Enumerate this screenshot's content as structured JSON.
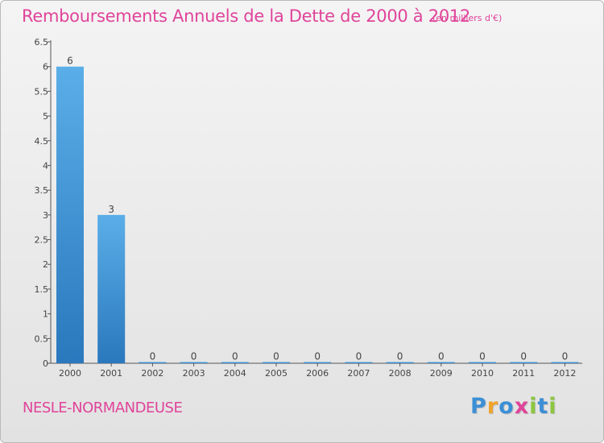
{
  "title": "Remboursements Annuels de la Dette de 2000 à 2012",
  "subtitle": "(en milliers d'€)",
  "commune": "NESLE-NORMANDEUSE",
  "logo": {
    "letters": [
      "P",
      "r",
      "o",
      "x",
      "i",
      "t",
      "i"
    ],
    "colors": [
      "#3b8fd6",
      "#f0a32b",
      "#3b8fd6",
      "#e0449a",
      "#8cc63f",
      "#3b8fd6",
      "#8cc63f"
    ]
  },
  "colors": {
    "accent": "#e0449a",
    "bar_top": "#5aaee8",
    "bar_bottom": "#2a78bd"
  },
  "chart_data": {
    "type": "bar",
    "categories": [
      "2000",
      "2001",
      "2002",
      "2003",
      "2004",
      "2005",
      "2006",
      "2007",
      "2008",
      "2009",
      "2010",
      "2011",
      "2012"
    ],
    "values": [
      6,
      3,
      0,
      0,
      0,
      0,
      0,
      0,
      0,
      0,
      0,
      0,
      0
    ],
    "data_labels": [
      "6",
      "3",
      "0",
      "0",
      "0",
      "0",
      "0",
      "0",
      "0",
      "0",
      "0",
      "0",
      "0"
    ],
    "y_ticks": [
      "0",
      "0.5",
      "1",
      "1.5",
      "2",
      "2.5",
      "3",
      "3.5",
      "4",
      "4.5",
      "5",
      "5.5",
      "6",
      "6.5"
    ],
    "ylim": [
      0,
      6.5
    ],
    "grid": false,
    "legend": "none"
  }
}
